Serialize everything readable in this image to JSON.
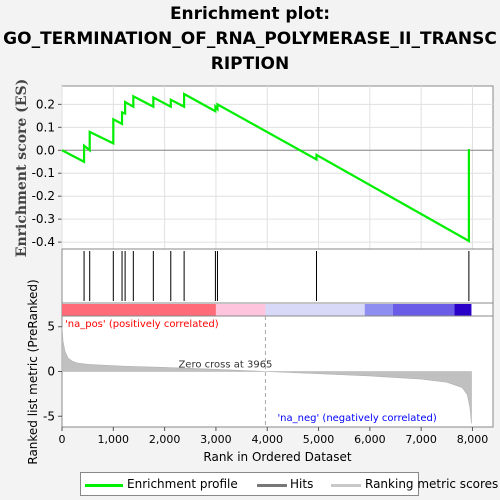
{
  "title": {
    "line1": "Enrichment plot:",
    "line2": "GO_TERMINATION_OF_RNA_POLYMERASE_II_TRANSC",
    "line3": "RIPTION"
  },
  "colors": {
    "enrichment": "#00ee00",
    "hits": "#000000",
    "ranking": "#c0c0c0",
    "pos_label": "#ff0000",
    "neg_label": "#0000ff"
  },
  "legend": {
    "enrichment_profile": "Enrichment profile",
    "hits": "Hits",
    "ranking_scores": "Ranking metric scores"
  },
  "chart_data": [
    {
      "type": "line",
      "name": "enrichment-profile",
      "ylabel": "Enrichment score (ES)",
      "xlim": [
        0,
        8400
      ],
      "ylim": [
        -0.43,
        0.28
      ],
      "yticks": [
        -0.4,
        -0.3,
        -0.2,
        -0.1,
        0.0,
        0.1,
        0.2
      ],
      "ytick_labels": [
        "-0.4",
        "-0.3",
        "-0.2",
        "-0.1",
        "0.0",
        "0.1",
        "0.2"
      ],
      "grid": true,
      "x": [
        0,
        430,
        430,
        540,
        540,
        1000,
        1000,
        1170,
        1170,
        1230,
        1230,
        1390,
        1390,
        1780,
        1780,
        2120,
        2120,
        2380,
        2380,
        2990,
        2990,
        3030,
        3030,
        4960,
        4960,
        7930,
        7930
      ],
      "y": [
        0.0,
        -0.05,
        0.02,
        0.0,
        0.08,
        0.03,
        0.135,
        0.115,
        0.165,
        0.16,
        0.21,
        0.19,
        0.235,
        0.19,
        0.23,
        0.19,
        0.22,
        0.19,
        0.245,
        0.17,
        0.19,
        0.18,
        0.2,
        -0.04,
        -0.02,
        -0.395,
        0.005
      ]
    },
    {
      "type": "scatter",
      "name": "hits",
      "x": [
        430,
        540,
        1000,
        1170,
        1230,
        1390,
        1780,
        2120,
        2380,
        2990,
        3030,
        4960,
        7930
      ]
    },
    {
      "type": "area",
      "name": "ranked-list",
      "xlabel": "Rank in Ordered Dataset",
      "ylabel": "Ranked list metric (PreRanked)",
      "xlim": [
        0,
        8400
      ],
      "ylim": [
        -6.2,
        6.2
      ],
      "xticks": [
        0,
        1000,
        2000,
        3000,
        4000,
        5000,
        6000,
        7000,
        8000
      ],
      "xtick_labels": [
        "0",
        "1,000",
        "2,000",
        "3,000",
        "4,000",
        "5,000",
        "6,000",
        "7,000",
        "8,000"
      ],
      "yticks": [
        -5,
        0,
        5
      ],
      "ytick_labels": [
        "-5",
        "0",
        "5"
      ],
      "x": [
        0,
        20,
        60,
        120,
        200,
        300,
        500,
        800,
        1200,
        2000,
        3000,
        3965,
        5000,
        6000,
        7000,
        7500,
        7800,
        7900,
        7950,
        7980
      ],
      "y": [
        5.0,
        3.4,
        2.2,
        1.5,
        1.15,
        0.95,
        0.8,
        0.7,
        0.6,
        0.45,
        0.25,
        0.0,
        -0.25,
        -0.5,
        -0.85,
        -1.2,
        -1.8,
        -2.6,
        -4.0,
        -5.8
      ],
      "zero_cross": 3965,
      "annotations": {
        "zero_cross": "Zero cross at 3965",
        "pos": "'na_pos' (positively correlated)",
        "neg": "'na_neg' (negatively correlated)"
      }
    }
  ]
}
